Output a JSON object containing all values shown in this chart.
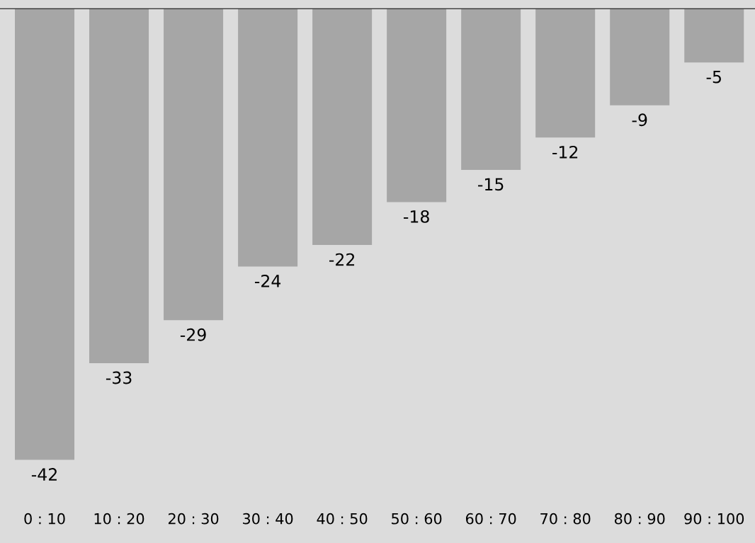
{
  "chart_data": {
    "type": "bar",
    "categories": [
      "0 : 10",
      "10 : 20",
      "20 : 30",
      "30 : 40",
      "40 : 50",
      "50 : 60",
      "60 : 70",
      "70 : 80",
      "80 : 90",
      "90 : 100"
    ],
    "values": [
      -42,
      -33,
      -29,
      -24,
      -22,
      -18,
      -15,
      -12,
      -9,
      -5
    ],
    "color": "#a6a6a6",
    "data_labels": true,
    "grid": false
  }
}
